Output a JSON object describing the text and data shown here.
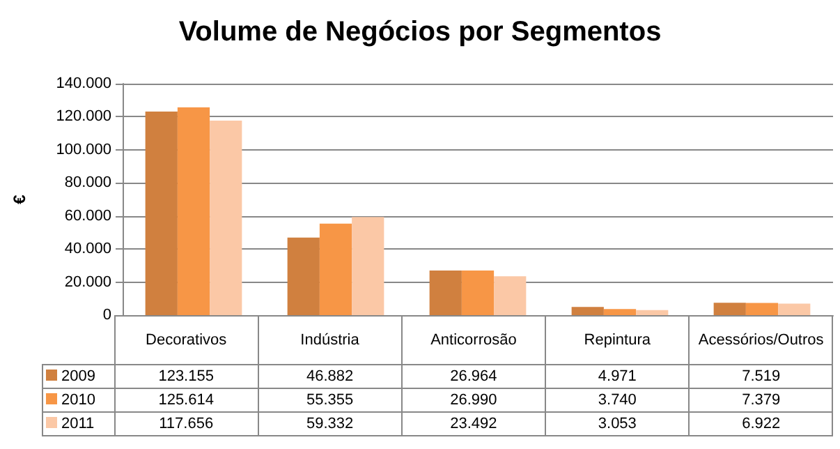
{
  "chart_data": {
    "type": "bar",
    "title": "Volume de Negócios por Segmentos",
    "ylabel": "€",
    "categories": [
      "Decorativos",
      "Indústria",
      "Anticorrosão",
      "Repintura",
      "Acessórios/Outros"
    ],
    "series": [
      {
        "name": "2009",
        "color": "#d0803f",
        "values": [
          123155,
          46882,
          26964,
          4971,
          7519
        ],
        "value_labels": [
          "123.155",
          "46.882",
          "26.964",
          "4.971",
          "7.519"
        ]
      },
      {
        "name": "2010",
        "color": "#f79646",
        "values": [
          125614,
          55355,
          26990,
          3740,
          7379
        ],
        "value_labels": [
          "125.614",
          "55.355",
          "26.990",
          "3.740",
          "7.379"
        ]
      },
      {
        "name": "2011",
        "color": "#fbc8a6",
        "values": [
          117656,
          59332,
          23492,
          3053,
          6922
        ],
        "value_labels": [
          "117.656",
          "59.332",
          "23.492",
          "3.053",
          "6.922"
        ]
      }
    ],
    "ylim": [
      0,
      140000
    ],
    "yticks": [
      0,
      {
        "value": 20000,
        "label": "20.000"
      },
      {
        "value": 40000,
        "label": "40.000"
      },
      {
        "value": 60000,
        "label": "60.000"
      },
      {
        "value": 80000,
        "label": "80.000"
      },
      {
        "value": 100000,
        "label": "100.000"
      },
      {
        "value": 120000,
        "label": "120.000"
      },
      {
        "value": 140000,
        "label": "140.000"
      }
    ],
    "grid": "y",
    "legend": "bottom"
  }
}
